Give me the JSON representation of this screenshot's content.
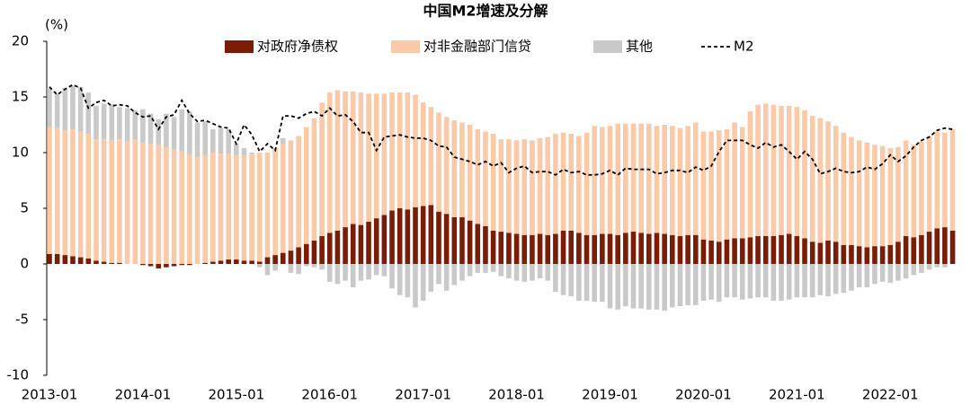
{
  "chart_data": {
    "type": "bar",
    "stacked": true,
    "title": "中国M2增速及分解",
    "y_label": "(%)",
    "legend": "top",
    "categories": [
      "2013-01",
      null,
      null,
      null,
      null,
      null,
      null,
      null,
      null,
      null,
      null,
      null,
      "2014-01",
      null,
      null,
      null,
      null,
      null,
      null,
      null,
      null,
      null,
      null,
      null,
      "2015-01",
      null,
      null,
      null,
      null,
      null,
      null,
      null,
      null,
      null,
      null,
      null,
      "2016-01",
      null,
      null,
      null,
      null,
      null,
      null,
      null,
      null,
      null,
      null,
      null,
      "2017-01",
      null,
      null,
      null,
      null,
      null,
      null,
      null,
      null,
      null,
      null,
      null,
      "2018-01",
      null,
      null,
      null,
      null,
      null,
      null,
      null,
      null,
      null,
      null,
      null,
      "2019-01",
      null,
      null,
      null,
      null,
      null,
      null,
      null,
      null,
      null,
      null,
      null,
      "2020-01",
      null,
      null,
      null,
      null,
      null,
      null,
      null,
      null,
      null,
      null,
      null,
      "2021-01",
      null,
      null,
      null,
      null,
      null,
      null,
      null,
      null,
      null,
      null,
      null,
      "2022-01",
      null,
      null,
      null,
      null,
      null,
      null,
      null,
      null
    ],
    "series": [
      {
        "name": "对政府净债权",
        "color": "#7a1c06",
        "values": [
          0.9,
          0.9,
          0.8,
          0.7,
          0.6,
          0.5,
          0.3,
          0.2,
          0.1,
          0.1,
          0,
          0,
          -0.1,
          -0.2,
          -0.4,
          -0.3,
          -0.2,
          -0.1,
          -0.1,
          0,
          0.1,
          0.2,
          0.3,
          0.4,
          0.4,
          0.3,
          0.3,
          0.2,
          0.6,
          0.8,
          1.0,
          1.2,
          1.5,
          1.8,
          2.1,
          2.5,
          2.8,
          3.0,
          3.3,
          3.6,
          3.5,
          3.8,
          4.1,
          4.4,
          4.8,
          5.0,
          4.9,
          5.1,
          5.2,
          5.3,
          4.7,
          4.5,
          4.2,
          4.2,
          3.9,
          3.6,
          3.4,
          3.0,
          2.9,
          2.8,
          2.7,
          2.6,
          2.6,
          2.7,
          2.6,
          2.7,
          3.0,
          3.0,
          2.8,
          2.6,
          2.6,
          2.7,
          2.7,
          2.6,
          2.8,
          2.9,
          2.8,
          2.7,
          2.8,
          2.7,
          2.6,
          2.5,
          2.6,
          2.6,
          2.2,
          2.1,
          2.0,
          2.2,
          2.3,
          2.3,
          2.4,
          2.5,
          2.5,
          2.5,
          2.6,
          2.7,
          2.5,
          2.3,
          2.0,
          1.9,
          2.1,
          2.0,
          1.7,
          1.7,
          1.6,
          1.5,
          1.6,
          1.6,
          1.7,
          2.0,
          2.5,
          2.4,
          2.6,
          2.9,
          3.2,
          3.3,
          3.0
        ]
      },
      {
        "name": "对非金融部门信贷",
        "color": "#f9c9a8",
        "values": [
          11.4,
          11.3,
          11.2,
          11.4,
          11.3,
          11.2,
          10.9,
          11.0,
          11.0,
          11.1,
          11.0,
          11.2,
          10.9,
          10.8,
          10.7,
          10.5,
          10.3,
          10.1,
          9.8,
          9.6,
          9.7,
          9.8,
          9.6,
          9.5,
          9.4,
          9.5,
          9.6,
          9.8,
          9.4,
          9.6,
          9.8,
          9.9,
          10.0,
          10.5,
          11.0,
          12.0,
          12.6,
          12.6,
          12.2,
          11.9,
          11.9,
          11.5,
          11.2,
          10.9,
          10.6,
          10.4,
          10.5,
          10.1,
          9.3,
          8.8,
          8.9,
          8.7,
          8.7,
          8.5,
          8.6,
          8.5,
          8.5,
          8.7,
          8.3,
          8.4,
          8.4,
          8.6,
          8.5,
          8.6,
          8.8,
          9.0,
          8.8,
          8.7,
          8.7,
          9.2,
          9.8,
          9.6,
          9.7,
          10.0,
          9.8,
          9.7,
          9.8,
          9.9,
          9.6,
          9.8,
          9.8,
          9.7,
          9.8,
          10.1,
          9.7,
          9.8,
          10.0,
          9.9,
          10.4,
          10.0,
          11.3,
          11.8,
          11.9,
          11.8,
          11.6,
          11.5,
          11.6,
          11.5,
          11.3,
          11.2,
          10.7,
          10.4,
          10.1,
          9.7,
          9.5,
          9.4,
          9.1,
          9.0,
          8.7,
          8.5,
          8.6,
          8.3,
          8.4,
          8.6,
          8.7,
          8.5,
          9.1
        ]
      },
      {
        "name": "其他",
        "color": "#c9c9c9",
        "values": [
          3.5,
          3.1,
          3.8,
          3.9,
          4.0,
          3.7,
          3.0,
          3.2,
          3.2,
          2.9,
          3.0,
          2.6,
          3.0,
          2.7,
          2.3,
          3.0,
          2.9,
          3.8,
          3.9,
          3.1,
          3.0,
          2.1,
          2.3,
          2.2,
          1.0,
          0.6,
          0.1,
          -0.3,
          -1.0,
          -0.6,
          0.5,
          -0.8,
          -0.9,
          -0.2,
          -0.3,
          -0.5,
          -1.6,
          -1.8,
          -1.5,
          -2.1,
          -1.5,
          -1.4,
          -1.0,
          -1.1,
          -2.2,
          -2.8,
          -3.0,
          -3.9,
          -3.3,
          -2.5,
          -1.8,
          -2.4,
          -1.9,
          -1.5,
          -1.1,
          -0.8,
          -0.8,
          -0.7,
          -1.1,
          -1.3,
          -1.5,
          -1.6,
          -1.5,
          -1.3,
          -1.5,
          -2.5,
          -2.8,
          -2.9,
          -3.3,
          -3.3,
          -3.4,
          -3.4,
          -4.0,
          -4.1,
          -3.8,
          -4.0,
          -4.0,
          -4.1,
          -4.1,
          -4.2,
          -3.9,
          -3.8,
          -3.7,
          -3.7,
          -3.3,
          -3.2,
          -3.4,
          -3.0,
          -3.0,
          -3.2,
          -3.1,
          -3.0,
          -3.0,
          -3.3,
          -3.3,
          -3.2,
          -3.0,
          -3.0,
          -3.0,
          -2.8,
          -2.9,
          -2.7,
          -2.6,
          -2.4,
          -2.1,
          -2.1,
          -1.8,
          -1.6,
          -1.7,
          -1.5,
          -1.3,
          -1.0,
          -0.8,
          -0.5,
          -0.3,
          -0.3,
          0
        ]
      },
      {
        "name": "M2",
        "color": "#000000",
        "type": "line",
        "style": "dashed",
        "values": [
          15.9,
          15.2,
          15.7,
          16.1,
          15.8,
          14.0,
          14.5,
          14.7,
          14.2,
          14.3,
          14.2,
          13.6,
          13.2,
          13.3,
          12.1,
          13.2,
          13.4,
          14.7,
          13.5,
          12.8,
          12.9,
          12.6,
          12.3,
          12.2,
          10.8,
          12.5,
          11.6,
          10.1,
          10.8,
          10.2,
          13.3,
          13.3,
          13.1,
          13.5,
          13.7,
          13.3,
          14.0,
          13.3,
          13.4,
          12.8,
          11.8,
          11.8,
          10.2,
          11.4,
          11.5,
          11.6,
          11.4,
          11.3,
          11.3,
          11.1,
          10.6,
          10.5,
          9.6,
          9.4,
          9.2,
          8.9,
          9.2,
          8.8,
          9.1,
          8.2,
          8.6,
          8.8,
          8.2,
          8.3,
          8.3,
          8.0,
          8.5,
          8.2,
          8.3,
          8.0,
          8.0,
          8.1,
          8.4,
          8.0,
          8.6,
          8.5,
          8.5,
          8.5,
          8.1,
          8.2,
          8.4,
          8.4,
          8.2,
          8.7,
          8.4,
          8.8,
          10.1,
          11.1,
          11.1,
          11.1,
          10.7,
          10.4,
          10.9,
          10.5,
          10.7,
          10.1,
          9.4,
          10.1,
          9.4,
          8.1,
          8.3,
          8.6,
          8.3,
          8.2,
          8.3,
          8.7,
          8.5,
          9.0,
          9.8,
          9.2,
          9.7,
          10.5,
          11.1,
          11.4,
          12.0,
          12.2,
          12.1
        ]
      }
    ],
    "ylim": [
      -10,
      20
    ],
    "yticks": [
      -10,
      -5,
      0,
      5,
      10,
      15,
      20
    ]
  }
}
